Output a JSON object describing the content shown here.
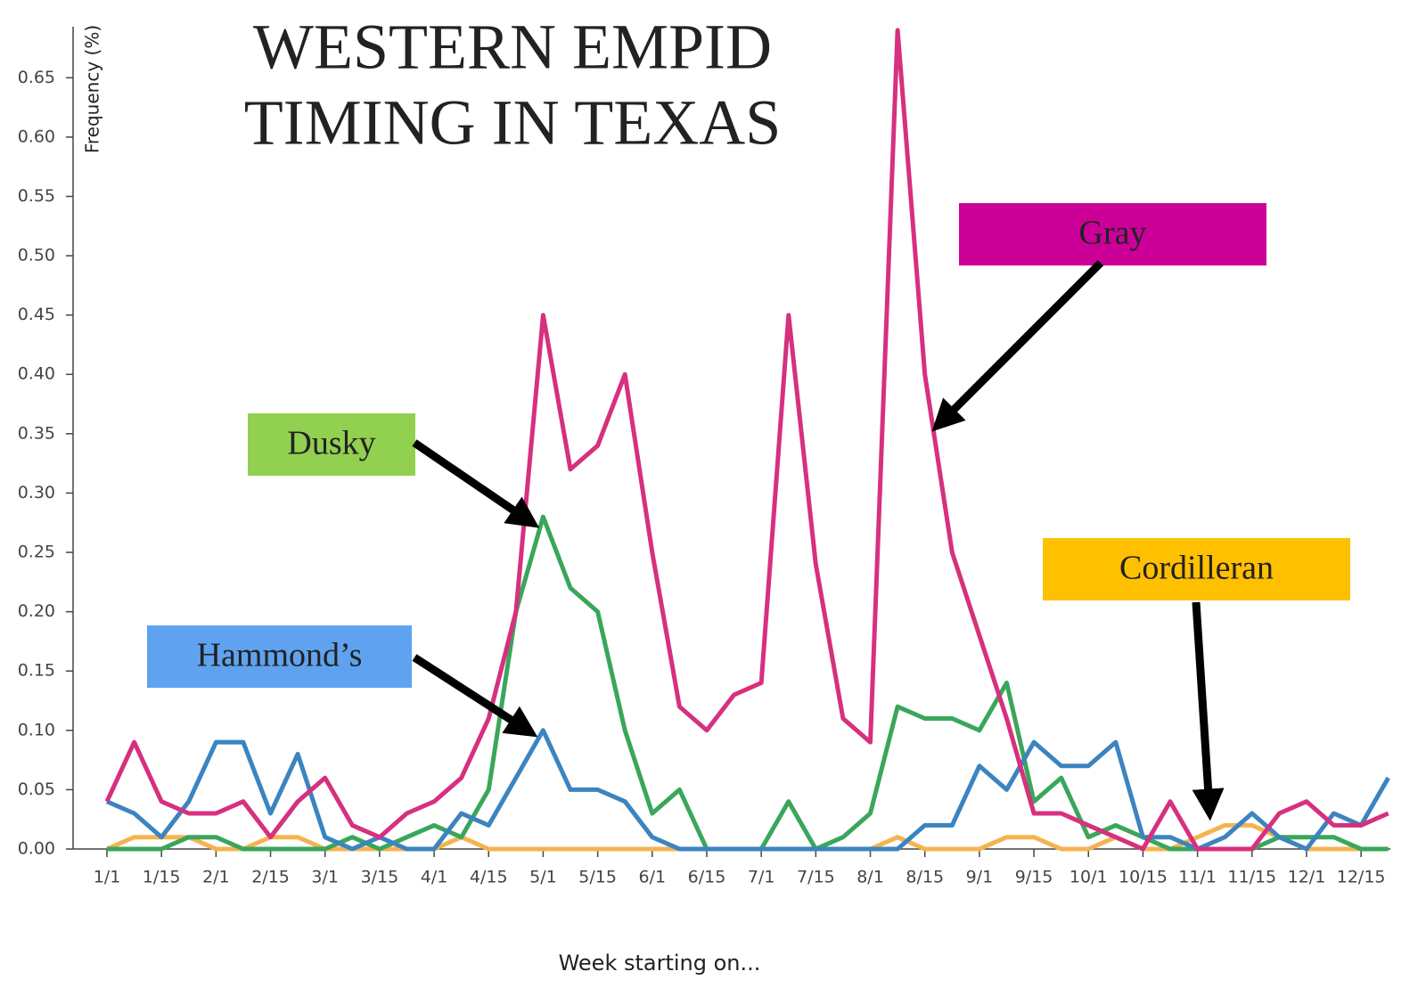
{
  "chart_data": {
    "type": "line",
    "title": [
      "WESTERN EMPID",
      "TIMING IN TEXAS"
    ],
    "y_label": "Frequency (%)",
    "x_label": "Week starting on...",
    "categories": [
      "1/1",
      null,
      "1/15",
      null,
      "2/1",
      null,
      "2/15",
      null,
      "3/1",
      null,
      "3/15",
      null,
      "4/1",
      null,
      "4/15",
      null,
      "5/1",
      null,
      "5/15",
      null,
      "6/1",
      null,
      "6/15",
      null,
      "7/1",
      null,
      "7/15",
      null,
      "8/1",
      null,
      "8/15",
      null,
      "9/1",
      null,
      "9/15",
      null,
      "10/1",
      null,
      "10/15",
      null,
      "11/1",
      null,
      "11/15",
      null,
      "12/1",
      null,
      "12/15",
      null
    ],
    "series": [
      {
        "name": "Gray",
        "color": "#d6307e",
        "box_color": "#cc0099",
        "values": [
          0.04,
          0.09,
          0.04,
          0.03,
          0.03,
          0.04,
          0.01,
          0.04,
          0.06,
          0.02,
          0.01,
          0.03,
          0.04,
          0.06,
          0.11,
          0.2,
          0.45,
          0.32,
          0.34,
          0.4,
          0.25,
          0.12,
          0.1,
          0.13,
          0.14,
          0.45,
          0.24,
          0.11,
          0.09,
          0.69,
          0.4,
          0.25,
          0.18,
          0.11,
          0.03,
          0.03,
          0.02,
          0.01,
          0,
          0.04,
          0,
          0,
          0,
          0.03,
          0.04,
          0.02,
          0.02,
          0.03
        ]
      },
      {
        "name": "Hammond’s",
        "color": "#3b84c0",
        "box_color": "#5fa3f0",
        "values": [
          0.04,
          0.03,
          0.01,
          0.04,
          0.09,
          0.09,
          0.03,
          0.08,
          0.01,
          0,
          0.01,
          0,
          0,
          0.03,
          0.02,
          0.06,
          0.1,
          0.05,
          0.05,
          0.04,
          0.01,
          0,
          0,
          0,
          0,
          0,
          0,
          0,
          0,
          0,
          0.02,
          0.02,
          0.07,
          0.05,
          0.09,
          0.07,
          0.07,
          0.09,
          0.01,
          0.01,
          0,
          0.01,
          0.03,
          0.01,
          0,
          0.03,
          0.02,
          0.06
        ]
      },
      {
        "name": "Dusky",
        "color": "#3aa65a",
        "box_color": "#92d050",
        "values": [
          0,
          0,
          0,
          0.01,
          0.01,
          0,
          0,
          0,
          0,
          0.01,
          0,
          0.01,
          0.02,
          0.01,
          0.05,
          0.2,
          0.28,
          0.22,
          0.2,
          0.1,
          0.03,
          0.05,
          0,
          0,
          0,
          0.04,
          0,
          0.01,
          0.03,
          0.12,
          0.11,
          0.11,
          0.1,
          0.14,
          0.04,
          0.06,
          0.01,
          0.02,
          0.01,
          0,
          0,
          0,
          0,
          0.01,
          0.01,
          0.01,
          0,
          0
        ]
      },
      {
        "name": "Cordilleran",
        "color": "#f5b350",
        "box_color": "#ffc000",
        "values": [
          0,
          0.01,
          0.01,
          0.01,
          0,
          0,
          0.01,
          0.01,
          0,
          0,
          0,
          0,
          0,
          0.01,
          0,
          0,
          0,
          0,
          0,
          0,
          0,
          0,
          0,
          0,
          0,
          0,
          0,
          0,
          0,
          0.01,
          0,
          0,
          0,
          0.01,
          0.01,
          0,
          0,
          0.01,
          0,
          0,
          0.01,
          0.02,
          0.02,
          0.01,
          0,
          0,
          0,
          0
        ]
      }
    ],
    "ylim": [
      0,
      0.69
    ],
    "yticks": [
      {
        "value": 0,
        "label": "0.00"
      },
      {
        "value": 0.05,
        "label": "0.05"
      },
      {
        "value": 0.1,
        "label": "0.10"
      },
      {
        "value": 0.15,
        "label": "0.15"
      },
      {
        "value": 0.2,
        "label": "0.20"
      },
      {
        "value": 0.25,
        "label": "0.25"
      },
      {
        "value": 0.3,
        "label": "0.30"
      },
      {
        "value": 0.35,
        "label": "0.35"
      },
      {
        "value": 0.4,
        "label": "0.40"
      },
      {
        "value": 0.45,
        "label": "0.45"
      },
      {
        "value": 0.5,
        "label": "0.50"
      },
      {
        "value": 0.55,
        "label": "0.55"
      },
      {
        "value": 0.6,
        "label": "0.60"
      },
      {
        "value": 0.65,
        "label": "0.65"
      }
    ],
    "grid": false
  }
}
